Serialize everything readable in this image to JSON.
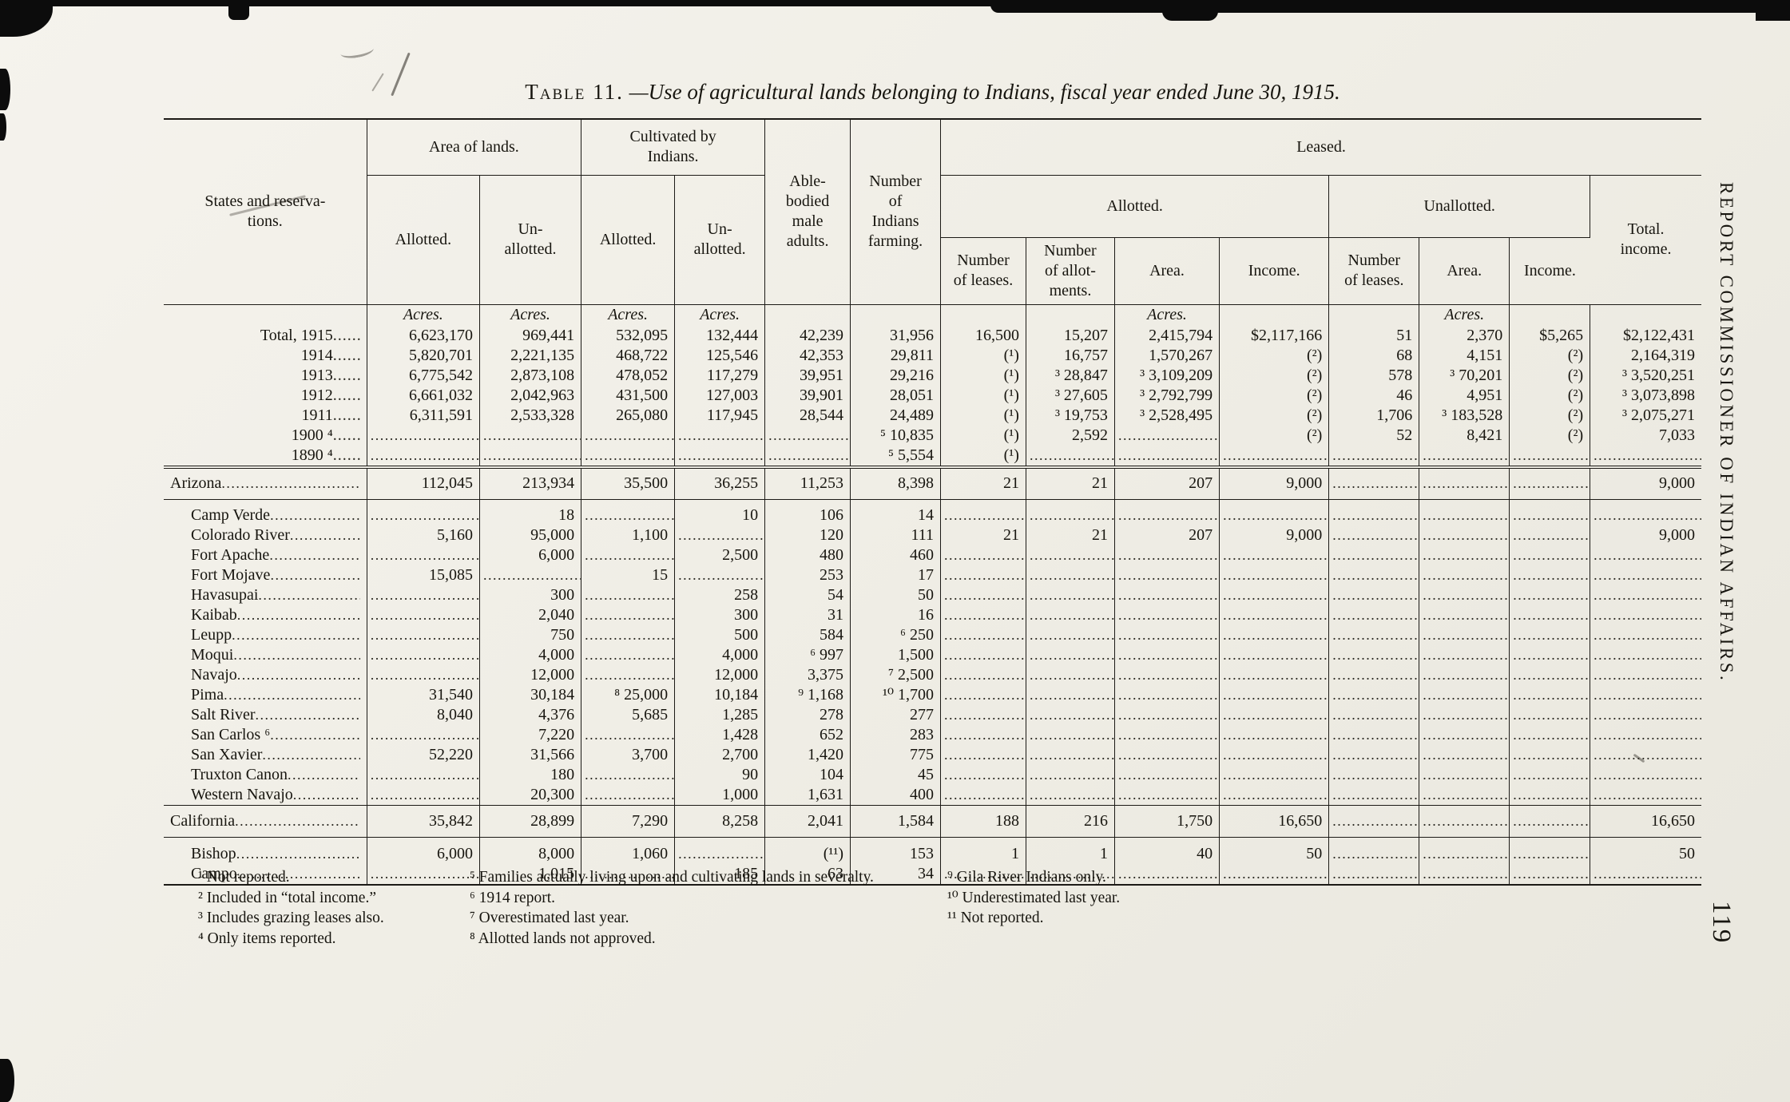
{
  "page": {
    "title_label": "Table 11.",
    "title_rest": "—Use of agricultural lands belonging to Indians, fiscal year ended June 30, 1915.",
    "side_caption": "REPORT COMMISSIONER OF INDIAN AFFAIRS.",
    "page_number": "119"
  },
  "table": {
    "header": {
      "stub": "States and reserva-\ntions.",
      "area_of_lands": "Area of lands.",
      "cultivated": "Cultivated by\nIndians.",
      "able_bodied": "Able-\nbodied\nmale\nadults.",
      "number_farming": "Number\nof\nIndians\nfarming.",
      "leased": "Leased.",
      "allotted": "Allotted.",
      "unallotted2": "Un-\nallotted.",
      "leased_allotted": "Allotted.",
      "leased_unallotted": "Unallotted.",
      "total_income": "Total.\nincome.",
      "number_of_leases": "Number\nof leases.",
      "number_of_allotments": "Number\nof allot-\nments.",
      "area": "Area.",
      "income": "Income."
    },
    "units_row": [
      "",
      "Acres.",
      "Acres.",
      "Acres.",
      "Acres.",
      "",
      "",
      "",
      "",
      "Acres.",
      "",
      "",
      "Acres.",
      "",
      ""
    ],
    "total_rows": [
      [
        "Total, 1915",
        "6,623,170",
        "969,441",
        "532,095",
        "132,444",
        "42,239",
        "31,956",
        "16,500",
        "15,207",
        "2,415,794",
        "$2,117,166",
        "51",
        "2,370",
        "$5,265",
        "$2,122,431"
      ],
      [
        "1914",
        "5,820,701",
        "2,221,135",
        "468,722",
        "125,546",
        "42,353",
        "29,811",
        "(¹)",
        "16,757",
        "1,570,267",
        "(²)",
        "68",
        "4,151",
        "(²)",
        "2,164,319"
      ],
      [
        "1913",
        "6,775,542",
        "2,873,108",
        "478,052",
        "117,279",
        "39,951",
        "29,216",
        "(¹)",
        "³ 28,847",
        "³ 3,109,209",
        "(²)",
        "578",
        "³ 70,201",
        "(²)",
        "³ 3,520,251"
      ],
      [
        "1912",
        "6,661,032",
        "2,042,963",
        "431,500",
        "127,003",
        "39,901",
        "28,051",
        "(¹)",
        "³ 27,605",
        "³ 2,792,799",
        "(²)",
        "46",
        "4,951",
        "(²)",
        "³ 3,073,898"
      ],
      [
        "1911",
        "6,311,591",
        "2,533,328",
        "265,080",
        "117,945",
        "28,544",
        "24,489",
        "(¹)",
        "³ 19,753",
        "³ 2,528,495",
        "(²)",
        "1,706",
        "³ 183,528",
        "(²)",
        "³ 2,075,271"
      ],
      [
        "1900 ⁴",
        "",
        "",
        "",
        "",
        "",
        "⁵ 10,835",
        "(¹)",
        "2,592",
        "",
        "(²)",
        "52",
        "8,421",
        "(²)",
        "7,033"
      ],
      [
        "1890 ⁴",
        "",
        "",
        "",
        "",
        "",
        "⁵ 5,554",
        "(¹)",
        "",
        "",
        "",
        "",
        "",
        "",
        ""
      ]
    ],
    "groups": [
      {
        "state_row": [
          "Arizona",
          "112,045",
          "213,934",
          "35,500",
          "36,255",
          "11,253",
          "8,398",
          "21",
          "21",
          "207",
          "9,000",
          "",
          "",
          "",
          "9,000"
        ],
        "reservation_rows": [
          [
            "Camp Verde",
            "",
            "18",
            "",
            "10",
            "106",
            "14",
            "",
            "",
            "",
            "",
            "",
            "",
            "",
            ""
          ],
          [
            "Colorado River",
            "5,160",
            "95,000",
            "1,100",
            "",
            "120",
            "111",
            "21",
            "21",
            "207",
            "9,000",
            "",
            "",
            "",
            "9,000"
          ],
          [
            "Fort Apache",
            "",
            "6,000",
            "",
            "2,500",
            "480",
            "460",
            "",
            "",
            "",
            "",
            "",
            "",
            "",
            ""
          ],
          [
            "Fort Mojave",
            "15,085",
            "",
            "15",
            "",
            "253",
            "17",
            "",
            "",
            "",
            "",
            "",
            "",
            "",
            ""
          ],
          [
            "Havasupai",
            "",
            "300",
            "",
            "258",
            "54",
            "50",
            "",
            "",
            "",
            "",
            "",
            "",
            "",
            ""
          ],
          [
            "Kaibab",
            "",
            "2,040",
            "",
            "300",
            "31",
            "16",
            "",
            "",
            "",
            "",
            "",
            "",
            "",
            ""
          ],
          [
            "Leupp",
            "",
            "750",
            "",
            "500",
            "584",
            "⁶ 250",
            "",
            "",
            "",
            "",
            "",
            "",
            "",
            ""
          ],
          [
            "Moqui",
            "",
            "4,000",
            "",
            "4,000",
            "⁶ 997",
            "1,500",
            "",
            "",
            "",
            "",
            "",
            "",
            "",
            ""
          ],
          [
            "Navajo",
            "",
            "12,000",
            "",
            "12,000",
            "3,375",
            "⁷ 2,500",
            "",
            "",
            "",
            "",
            "",
            "",
            "",
            ""
          ],
          [
            "Pima",
            "31,540",
            "30,184",
            "⁸ 25,000",
            "10,184",
            "⁹ 1,168",
            "¹⁰ 1,700",
            "",
            "",
            "",
            "",
            "",
            "",
            "",
            ""
          ],
          [
            "Salt River",
            "8,040",
            "4,376",
            "5,685",
            "1,285",
            "278",
            "277",
            "",
            "",
            "",
            "",
            "",
            "",
            "",
            ""
          ],
          [
            "San Carlos ⁶",
            "",
            "7,220",
            "",
            "1,428",
            "652",
            "283",
            "",
            "",
            "",
            "",
            "",
            "",
            "",
            ""
          ],
          [
            "San Xavier",
            "52,220",
            "31,566",
            "3,700",
            "2,700",
            "1,420",
            "775",
            "",
            "",
            "",
            "",
            "",
            "",
            "",
            ""
          ],
          [
            "Truxton Canon",
            "",
            "180",
            "",
            "90",
            "104",
            "45",
            "",
            "",
            "",
            "",
            "",
            "",
            "",
            ""
          ],
          [
            "Western Navajo",
            "",
            "20,300",
            "",
            "1,000",
            "1,631",
            "400",
            "",
            "",
            "",
            "",
            "",
            "",
            "",
            ""
          ]
        ]
      },
      {
        "state_row": [
          "California",
          "35,842",
          "28,899",
          "7,290",
          "8,258",
          "2,041",
          "1,584",
          "188",
          "216",
          "1,750",
          "16,650",
          "",
          "",
          "",
          "16,650"
        ],
        "reservation_rows": [
          [
            "Bishop",
            "6,000",
            "8,000",
            "1,060",
            "",
            "(¹¹)",
            "153",
            "1",
            "1",
            "40",
            "50",
            "",
            "",
            "",
            "50"
          ],
          [
            "Campo",
            "",
            "1,015",
            "",
            "185",
            "63",
            "34",
            "",
            "",
            "",
            "",
            "",
            "",
            "",
            ""
          ]
        ]
      }
    ]
  },
  "footnotes": {
    "column1": [
      "¹ Not reported.",
      "² Included in “total income.”",
      "³ Includes grazing leases also.",
      "⁴ Only items reported."
    ],
    "column2": [
      "⁵ Families actually living upon and cultivating lands in severalty.",
      "⁶ 1914 report.",
      "⁷ Overestimated last year.",
      "⁸ Allotted lands not approved."
    ],
    "column3": [
      "⁹ Gila River Indians only.",
      "¹⁰ Underestimated last year.",
      "¹¹ Not reported."
    ]
  }
}
